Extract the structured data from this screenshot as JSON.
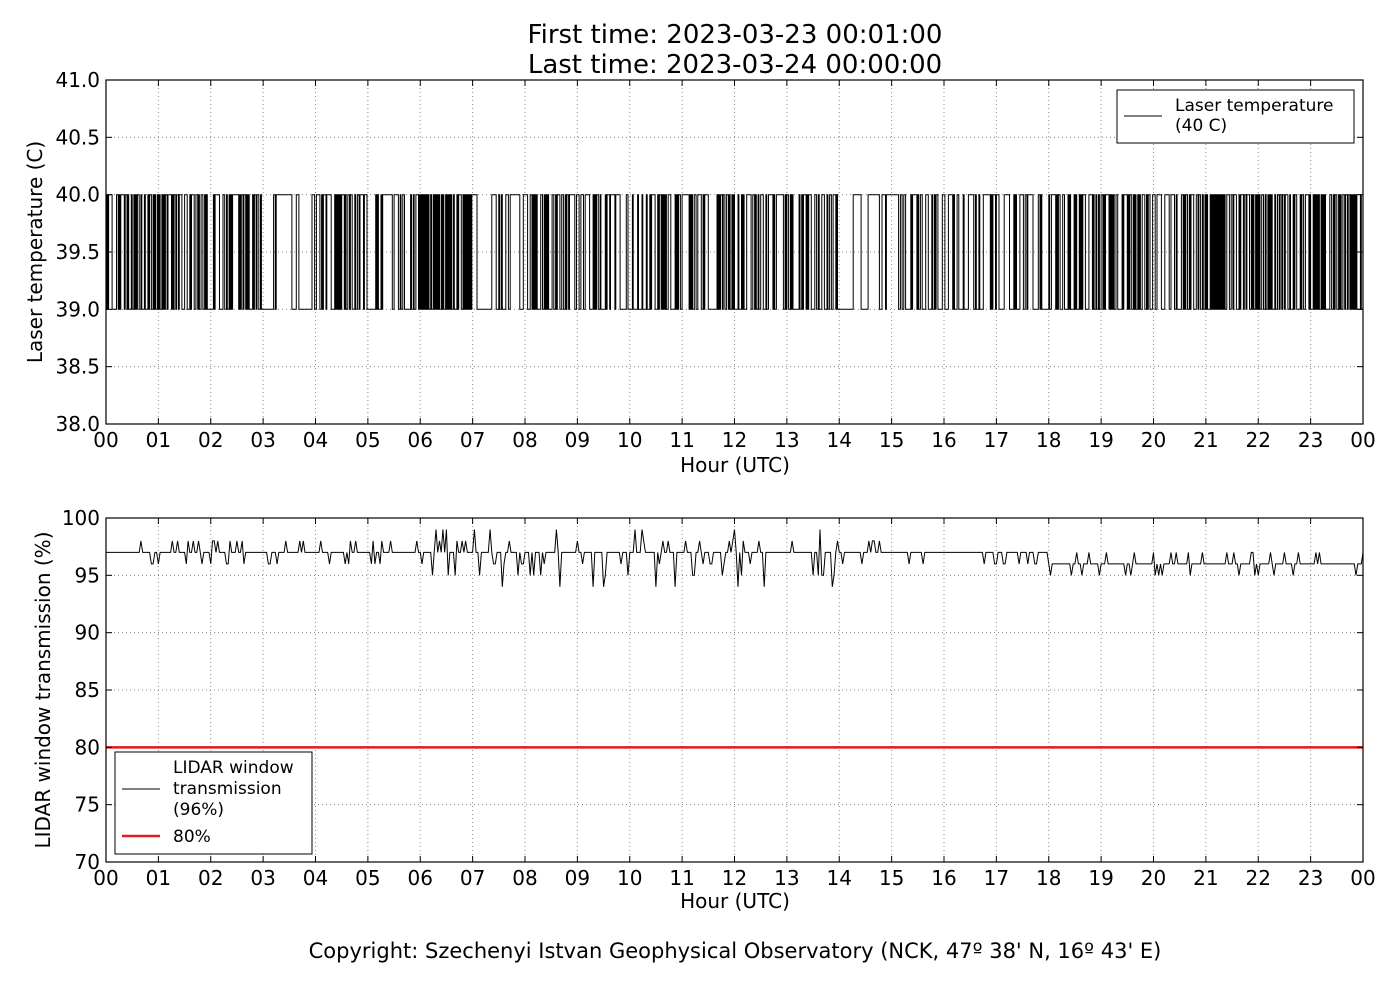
{
  "page": {
    "title_line1": "First time: 2023-03-23 00:01:00",
    "title_line2": "Last time: 2023-03-24 00:00:00",
    "copyright": "Copyright: Szechenyi Istvan Geophysical Observatory (NCK, 47º 38' N, 16º 43' E)"
  },
  "colors": {
    "series": "#000000",
    "threshold": "#e41a1c",
    "grid": "#888888"
  },
  "chart_data": [
    {
      "type": "line",
      "xlabel": "Hour (UTC)",
      "ylabel": "Laser temperature (C)",
      "xlim": [
        0,
        24
      ],
      "ylim": [
        38.0,
        41.0
      ],
      "x_tick_labels": [
        "00",
        "01",
        "02",
        "03",
        "04",
        "05",
        "06",
        "07",
        "08",
        "09",
        "10",
        "11",
        "12",
        "13",
        "14",
        "15",
        "16",
        "17",
        "18",
        "19",
        "20",
        "21",
        "22",
        "23",
        "00"
      ],
      "y_ticks": [
        38.0,
        38.5,
        39.0,
        39.5,
        40.0,
        40.5,
        41.0
      ],
      "y_tick_labels": [
        "38.0",
        "38.5",
        "39.0",
        "39.5",
        "40.0",
        "40.5",
        "41.0"
      ],
      "grid": true,
      "legend_position": "top-right",
      "series": [
        {
          "name": "Laser temperature\n(40 C)",
          "legend_lines": [
            "Laser temperature",
            "(40 C)"
          ],
          "levels": [
            39.0,
            40.0
          ],
          "switch_density_by_hour": [
            8,
            7,
            6,
            3,
            7,
            5,
            9,
            3,
            6,
            5,
            7,
            6,
            6,
            5,
            1,
            6,
            5,
            3,
            6,
            7,
            5,
            9,
            7,
            9
          ]
        }
      ]
    },
    {
      "type": "line",
      "xlabel": "Hour (UTC)",
      "ylabel": "LIDAR window transmission (%)",
      "xlim": [
        0,
        24
      ],
      "ylim": [
        70,
        100
      ],
      "x_tick_labels": [
        "00",
        "01",
        "02",
        "03",
        "04",
        "05",
        "06",
        "07",
        "08",
        "09",
        "10",
        "11",
        "12",
        "13",
        "14",
        "15",
        "16",
        "17",
        "18",
        "19",
        "20",
        "21",
        "22",
        "23",
        "00"
      ],
      "y_ticks": [
        70,
        75,
        80,
        85,
        90,
        95,
        100
      ],
      "y_tick_labels": [
        "70",
        "75",
        "80",
        "85",
        "90",
        "95",
        "100"
      ],
      "grid": true,
      "legend_position": "bottom-left",
      "series": [
        {
          "name": "LIDAR window\ntransmission\n(96%)",
          "legend_lines": [
            "LIDAR window",
            "transmission",
            "(96%)"
          ],
          "baseline_by_hour": [
            97,
            97,
            97,
            97,
            97,
            97,
            97,
            96.5,
            96.5,
            96.5,
            96.5,
            96.5,
            96.5,
            96.5,
            97,
            97,
            97,
            96.5,
            96,
            96,
            96,
            96,
            96,
            96
          ],
          "spread_by_hour": [
            1,
            1,
            1,
            1,
            1,
            1,
            2,
            3,
            4,
            4,
            3,
            2,
            3,
            3,
            1,
            1,
            1,
            1,
            1,
            1,
            1,
            1,
            1,
            1
          ]
        },
        {
          "name": "80%",
          "legend_lines": [
            "80%"
          ],
          "constant": 80
        }
      ]
    }
  ]
}
